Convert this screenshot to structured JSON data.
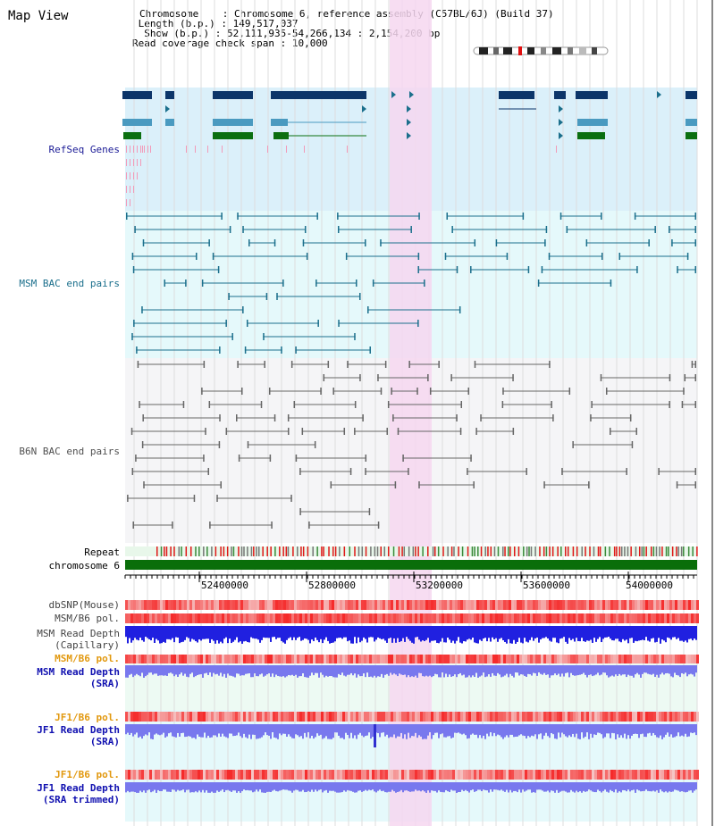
{
  "page": {
    "title": "Map View"
  },
  "info": {
    "chromosome_key": "Chromosome",
    "chromosome_val": "Chromosome 6, reference assembly (C57BL/6J) (Build 37)",
    "length_key": "Length (b.p.)",
    "length_val": "149,517,037",
    "show_key": "Show (b.p.)",
    "show_val": "52,111,935-54,266,134 : 2,154,200 bp",
    "coverage_key": "Read coverage check span",
    "coverage_val": "10,000"
  },
  "tracks": {
    "refseq": "RefSeq Genes",
    "msm_bac": "MSM BAC end pairs",
    "b6n_bac": "B6N BAC end pairs",
    "repeat": "Repeat",
    "chromosome": "chromosome 6",
    "dbsnp": "dbSNP(Mouse)",
    "msm_b6_pol": "MSM/B6 pol.",
    "msm_depth_cap_1": "MSM Read Depth",
    "msm_depth_cap_2": "(Capillary)",
    "msm_b6_pol_2": "MSM/B6 pol.",
    "msm_depth_sra_1": "MSM Read Depth",
    "msm_depth_sra_2": "(SRA)",
    "jf1_b6_pol": "JF1/B6 pol.",
    "jf1_depth_sra_1": "JF1 Read Depth",
    "jf1_depth_sra_2": "(SRA)",
    "jf1_b6_pol_2": "JF1/B6 pol.",
    "jf1_depth_trim_1": "JF1 Read Depth",
    "jf1_depth_trim_2": "(SRA trimmed)"
  },
  "axis": {
    "ticks": [
      "52400000",
      "52800000",
      "53200000",
      "53600000",
      "54000000"
    ]
  },
  "colors": {
    "refseq_bg": "#dbf0fa",
    "msm_bg": "#e5f9fb",
    "b6n_bg": "#f5f5f7",
    "highlight": "#f6d7f0",
    "dark_gene": "#0c3569",
    "mid_gene": "#4a9ac0",
    "green_gene": "#0b6f10",
    "msm_line": "#1b6f8c",
    "b6n_line": "#666666",
    "refseq_label": "#1b1b96",
    "msm_label": "#1b6f8c",
    "b6n_label": "#505050",
    "orange_label": "#e29910",
    "blue_label": "#1010b0",
    "depth_blue": "#2020e0",
    "depth_light": "#7878ee",
    "chrom_green": "#0a6e0a",
    "snp_red": "#f43030"
  }
}
